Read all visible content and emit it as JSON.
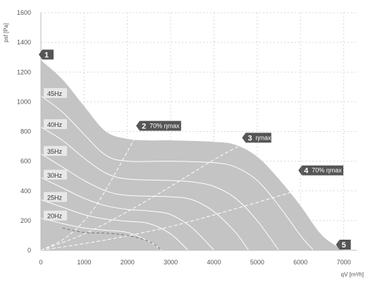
{
  "chart_data": {
    "type": "area",
    "xlabel": "qV [m³/h]",
    "ylabel": "psf [Pa]",
    "xlim": [
      0,
      7300
    ],
    "ylim": [
      0,
      1600
    ],
    "x_ticks": [
      "0",
      "1000",
      "2000",
      "3000",
      "4000",
      "5000",
      "6000",
      "7000"
    ],
    "y_ticks": [
      "0",
      "200",
      "400",
      "600",
      "800",
      "1000",
      "1200",
      "1400",
      "1600"
    ],
    "grid": true,
    "colors": {
      "envelope": "#c4c4c4",
      "curve": "#ffffff",
      "marker": "#555555",
      "dashed": "#ffffff"
    },
    "envelope": {
      "x": [
        0,
        500,
        1000,
        1500,
        2000,
        2500,
        3000,
        4000,
        4500,
        5000,
        5500,
        6000,
        6500,
        7000
      ],
      "y": [
        1280,
        1150,
        970,
        800,
        750,
        740,
        740,
        730,
        710,
        630,
        480,
        300,
        100,
        0
      ]
    },
    "speed_curves": [
      {
        "name": "45Hz",
        "x": [
          0,
          500,
          1000,
          1500,
          2000,
          3000,
          4000,
          4500,
          5000,
          5500,
          6000,
          6300
        ],
        "y": [
          1040,
          930,
          780,
          640,
          600,
          600,
          590,
          560,
          470,
          300,
          100,
          0
        ]
      },
      {
        "name": "40Hz",
        "x": [
          0,
          500,
          1000,
          1500,
          2000,
          3000,
          3500,
          4000,
          4500,
          5000,
          5500
        ],
        "y": [
          830,
          740,
          620,
          520,
          480,
          470,
          460,
          430,
          350,
          200,
          0
        ]
      },
      {
        "name": "35Hz",
        "x": [
          0,
          500,
          1000,
          1500,
          2000,
          3000,
          3500,
          4000,
          4500,
          4800
        ],
        "y": [
          650,
          560,
          470,
          400,
          370,
          360,
          340,
          260,
          120,
          0
        ]
      },
      {
        "name": "30Hz",
        "x": [
          0,
          500,
          1000,
          1500,
          2000,
          2500,
          3000,
          3500,
          4000
        ],
        "y": [
          490,
          420,
          350,
          300,
          275,
          265,
          240,
          150,
          0
        ]
      },
      {
        "name": "25Hz",
        "x": [
          0,
          500,
          1000,
          1500,
          2000,
          2500,
          3000,
          3400
        ],
        "y": [
          340,
          290,
          240,
          210,
          195,
          180,
          110,
          0
        ]
      },
      {
        "name": "20Hz",
        "x": [
          0,
          500,
          1000,
          1500,
          2000,
          2500,
          2800
        ],
        "y": [
          215,
          180,
          150,
          135,
          120,
          60,
          0
        ]
      }
    ],
    "efficiency_lines": [
      {
        "x": [
          0,
          600,
          1200,
          1800,
          2250
        ],
        "y": [
          0,
          90,
          270,
          560,
          800
        ]
      },
      {
        "x": [
          0,
          1000,
          2000,
          3000,
          4000,
          4700
        ],
        "y": [
          0,
          110,
          260,
          430,
          610,
          720
        ]
      },
      {
        "x": [
          0,
          1500,
          3000,
          4500,
          6000,
          6900
        ],
        "y": [
          0,
          70,
          160,
          280,
          410,
          500
        ]
      }
    ],
    "limit_line": {
      "x": [
        500,
        1000,
        1500,
        2000,
        2500,
        2800
      ],
      "y": [
        150,
        120,
        115,
        100,
        60,
        0
      ]
    },
    "markers": [
      {
        "num": "1",
        "text": "",
        "x": 0,
        "y": 1280
      },
      {
        "num": "2",
        "text": "70% ηmax",
        "x": 2250,
        "y": 800
      },
      {
        "num": "3",
        "text": "ηmax",
        "x": 4700,
        "y": 720
      },
      {
        "num": "4",
        "text": "70% ηmax",
        "x": 6000,
        "y": 500
      },
      {
        "num": "5",
        "text": "",
        "x": 7000,
        "y": 0
      }
    ]
  }
}
